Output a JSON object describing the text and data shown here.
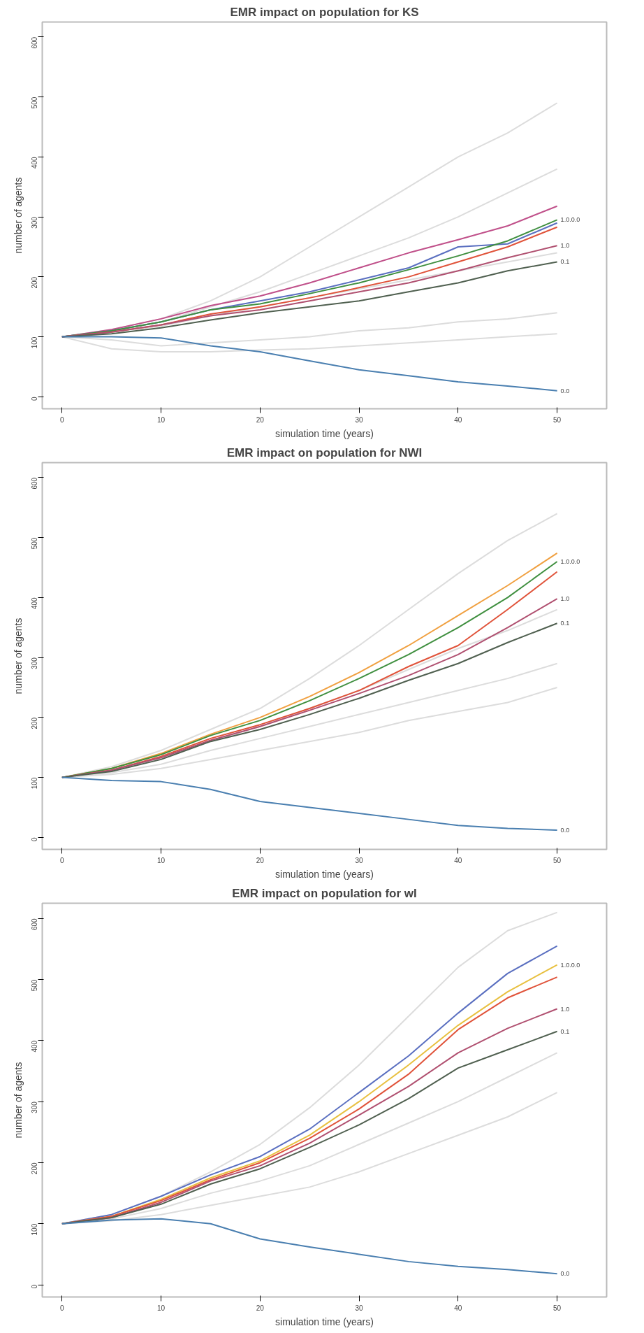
{
  "chart_data": [
    {
      "type": "line",
      "title": "EMR impact on population for KS",
      "xlabel": "simulation time (years)",
      "ylabel": "number of agents",
      "x": [
        0,
        5,
        10,
        15,
        20,
        25,
        30,
        35,
        40,
        45,
        50
      ],
      "xlim": [
        -2,
        55
      ],
      "xticks": [
        0,
        10,
        20,
        30,
        40,
        50
      ],
      "ylim": [
        -20,
        625
      ],
      "yticks": [
        0,
        100,
        200,
        300,
        400,
        500,
        600
      ],
      "series": [
        {
          "name": null,
          "color": "#dcdcdc",
          "values": [
            100,
            112,
            130,
            160,
            200,
            250,
            300,
            350,
            400,
            440,
            490
          ]
        },
        {
          "name": null,
          "color": "#dcdcdc",
          "values": [
            100,
            110,
            125,
            150,
            175,
            205,
            235,
            265,
            300,
            340,
            380
          ]
        },
        {
          "name": null,
          "color": "#dcdcdc",
          "values": [
            100,
            108,
            118,
            135,
            150,
            165,
            180,
            195,
            210,
            225,
            240
          ]
        },
        {
          "name": null,
          "color": "#dcdcdc",
          "values": [
            100,
            95,
            85,
            90,
            95,
            100,
            110,
            115,
            125,
            130,
            140
          ]
        },
        {
          "name": null,
          "color": "#dcdcdc",
          "values": [
            100,
            80,
            75,
            75,
            78,
            80,
            85,
            90,
            95,
            100,
            105
          ]
        },
        {
          "name": null,
          "color": "#c0508a",
          "values": [
            100,
            112,
            130,
            152,
            168,
            190,
            215,
            240,
            262,
            285,
            318
          ]
        },
        {
          "name": null,
          "color": "#5a6fc0",
          "values": [
            100,
            110,
            125,
            145,
            160,
            175,
            195,
            215,
            250,
            255,
            290
          ]
        },
        {
          "name": "1.0.0.0",
          "color": "#3f8f3f",
          "values": [
            100,
            110,
            125,
            145,
            155,
            172,
            190,
            212,
            235,
            260,
            295
          ]
        },
        {
          "name": null,
          "color": "#e0533a",
          "values": [
            100,
            108,
            120,
            138,
            150,
            165,
            182,
            200,
            225,
            250,
            283
          ]
        },
        {
          "name": "1.0",
          "color": "#b05070",
          "values": [
            100,
            108,
            120,
            135,
            145,
            160,
            175,
            190,
            210,
            232,
            252
          ]
        },
        {
          "name": "0.1",
          "color": "#506050",
          "values": [
            100,
            105,
            115,
            128,
            140,
            150,
            160,
            175,
            190,
            210,
            225
          ]
        },
        {
          "name": "0.0",
          "color": "#4a7fb0",
          "values": [
            100,
            100,
            98,
            85,
            75,
            60,
            45,
            35,
            25,
            18,
            10
          ]
        }
      ]
    },
    {
      "type": "line",
      "title": "EMR impact on population for NWI",
      "xlabel": "simulation time (years)",
      "ylabel": "number of agents",
      "x": [
        0,
        5,
        10,
        15,
        20,
        25,
        30,
        35,
        40,
        45,
        50
      ],
      "xlim": [
        -2,
        55
      ],
      "xticks": [
        0,
        10,
        20,
        30,
        40,
        50
      ],
      "ylim": [
        -20,
        625
      ],
      "yticks": [
        0,
        100,
        200,
        300,
        400,
        500,
        600
      ],
      "series": [
        {
          "name": null,
          "color": "#dcdcdc",
          "values": [
            100,
            118,
            145,
            180,
            215,
            265,
            320,
            380,
            440,
            495,
            540
          ]
        },
        {
          "name": null,
          "color": "#dcdcdc",
          "values": [
            100,
            112,
            132,
            160,
            185,
            215,
            245,
            280,
            315,
            345,
            380
          ]
        },
        {
          "name": null,
          "color": "#dcdcdc",
          "values": [
            100,
            108,
            122,
            145,
            165,
            185,
            205,
            225,
            245,
            265,
            290
          ]
        },
        {
          "name": null,
          "color": "#dcdcdc",
          "values": [
            100,
            105,
            115,
            130,
            145,
            160,
            175,
            195,
            210,
            225,
            250
          ]
        },
        {
          "name": null,
          "color": "#f0a040",
          "values": [
            100,
            115,
            140,
            172,
            200,
            235,
            275,
            320,
            370,
            420,
            474
          ]
        },
        {
          "name": "1.0.0.0",
          "color": "#3f8f3f",
          "values": [
            100,
            115,
            138,
            170,
            195,
            228,
            265,
            305,
            350,
            400,
            460
          ]
        },
        {
          "name": null,
          "color": "#e0533a",
          "values": [
            100,
            112,
            135,
            165,
            188,
            215,
            245,
            285,
            320,
            380,
            443
          ]
        },
        {
          "name": "1.0",
          "color": "#b05070",
          "values": [
            100,
            112,
            133,
            162,
            185,
            212,
            240,
            270,
            305,
            350,
            398
          ]
        },
        {
          "name": "0.1",
          "color": "#506050",
          "values": [
            100,
            110,
            130,
            160,
            180,
            205,
            232,
            262,
            290,
            325,
            357
          ]
        },
        {
          "name": "0.0",
          "color": "#4a7fb0",
          "values": [
            100,
            95,
            93,
            80,
            60,
            50,
            40,
            30,
            20,
            15,
            12
          ]
        }
      ]
    },
    {
      "type": "line",
      "title": "EMR impact on population for wI",
      "xlabel": "simulation time (years)",
      "ylabel": "number of agents",
      "x": [
        0,
        5,
        10,
        15,
        20,
        25,
        30,
        35,
        40,
        45,
        50
      ],
      "xlim": [
        -2,
        55
      ],
      "xticks": [
        0,
        10,
        20,
        30,
        40,
        50
      ],
      "ylim": [
        -20,
        625
      ],
      "yticks": [
        0,
        100,
        200,
        300,
        400,
        500,
        600
      ],
      "series": [
        {
          "name": null,
          "color": "#dcdcdc",
          "values": [
            100,
            115,
            145,
            185,
            230,
            290,
            360,
            440,
            520,
            580,
            610
          ]
        },
        {
          "name": null,
          "color": "#dcdcdc",
          "values": [
            100,
            108,
            125,
            150,
            170,
            195,
            230,
            265,
            300,
            340,
            380
          ]
        },
        {
          "name": null,
          "color": "#dcdcdc",
          "values": [
            100,
            105,
            115,
            130,
            145,
            160,
            185,
            215,
            245,
            275,
            315
          ]
        },
        {
          "name": null,
          "color": "#5a6fc0",
          "values": [
            100,
            115,
            145,
            180,
            210,
            255,
            315,
            375,
            445,
            510,
            555
          ]
        },
        {
          "name": "1.0.0.0",
          "color": "#e8c040",
          "values": [
            100,
            112,
            140,
            175,
            203,
            245,
            300,
            360,
            425,
            480,
            524
          ]
        },
        {
          "name": null,
          "color": "#e0533a",
          "values": [
            100,
            112,
            138,
            172,
            200,
            240,
            288,
            345,
            418,
            470,
            504
          ]
        },
        {
          "name": "1.0",
          "color": "#b05070",
          "values": [
            100,
            110,
            135,
            170,
            195,
            232,
            278,
            325,
            380,
            420,
            452
          ]
        },
        {
          "name": "0.1",
          "color": "#506050",
          "values": [
            100,
            110,
            132,
            165,
            190,
            225,
            262,
            305,
            355,
            385,
            415
          ]
        },
        {
          "name": "0.0",
          "color": "#4a7fb0",
          "values": [
            100,
            106,
            108,
            100,
            75,
            62,
            50,
            38,
            30,
            25,
            18
          ]
        }
      ]
    }
  ]
}
